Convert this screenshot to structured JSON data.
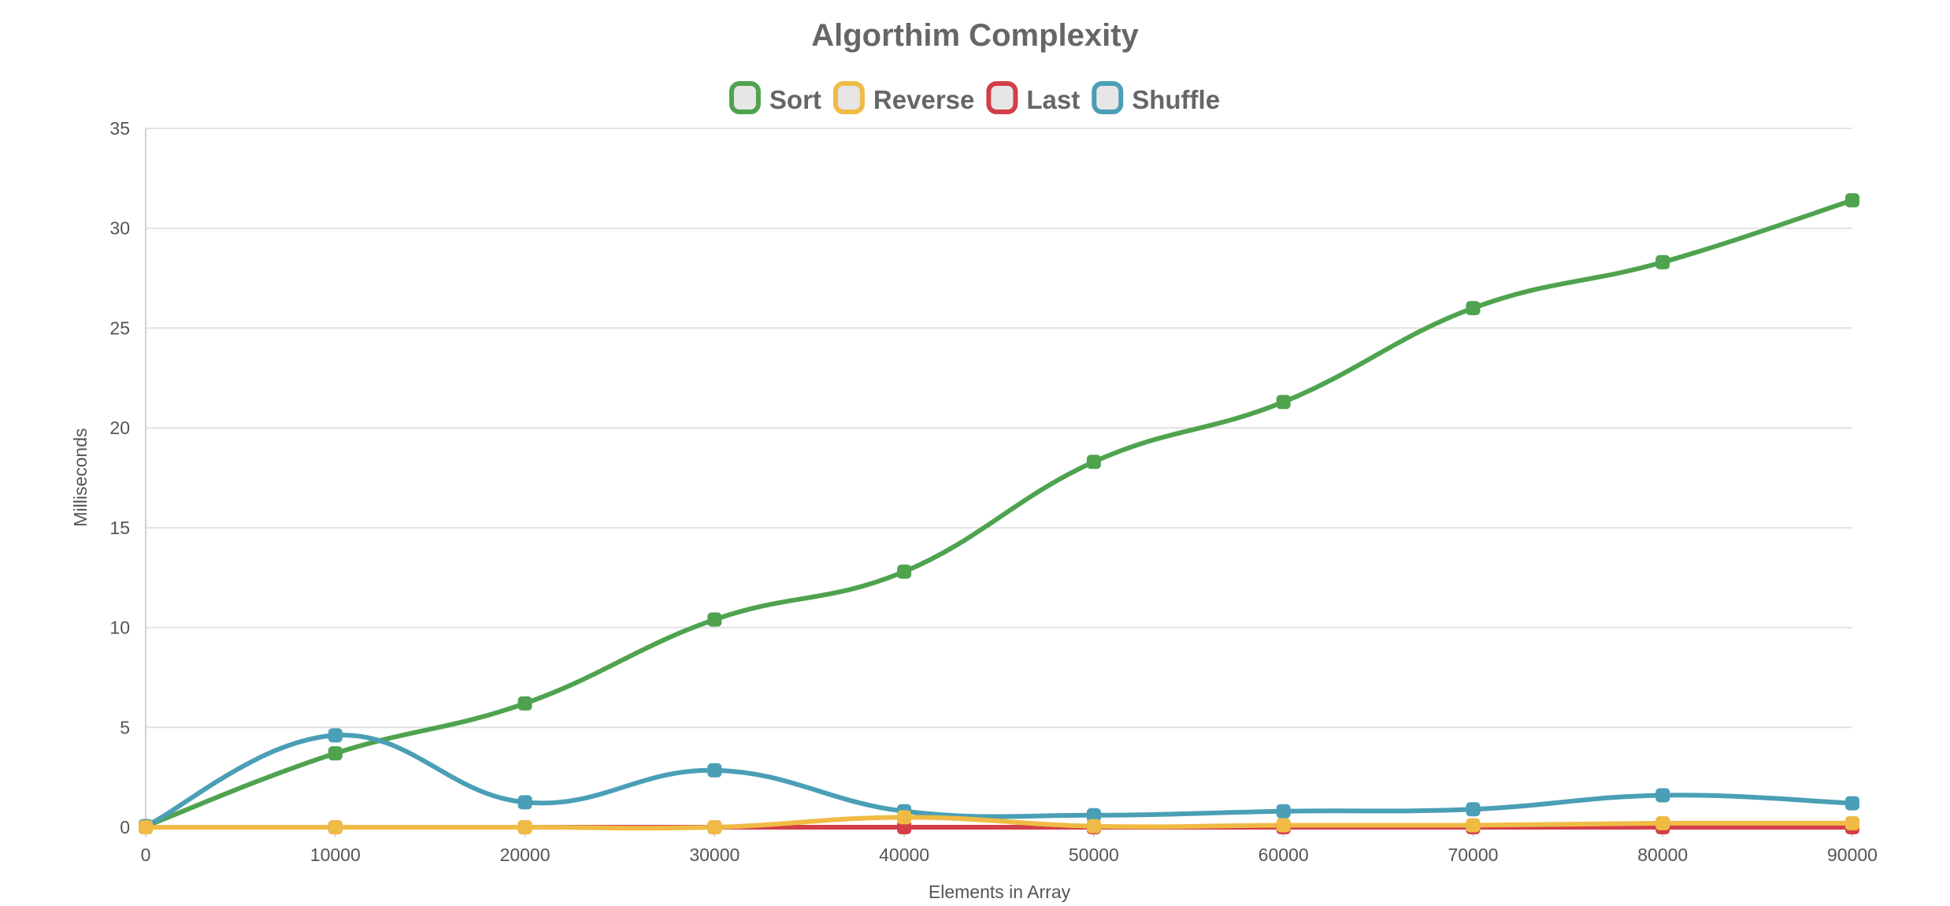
{
  "chart_data": {
    "type": "line",
    "title": "Algorthim Complexity",
    "xlabel": "Elements in Array",
    "ylabel": "Milliseconds",
    "categories": [
      "0",
      "10000",
      "20000",
      "30000",
      "40000",
      "50000",
      "60000",
      "70000",
      "80000",
      "90000"
    ],
    "ylim": [
      0,
      35
    ],
    "yticks": [
      0,
      5,
      10,
      15,
      20,
      25,
      30,
      35
    ],
    "grid": true,
    "legend_position": "top",
    "series": [
      {
        "name": "Sort",
        "color": "#4fa34f",
        "values": [
          0.05,
          3.7,
          6.2,
          10.4,
          12.8,
          18.3,
          21.3,
          26.0,
          28.3,
          31.4
        ]
      },
      {
        "name": "Reverse",
        "color": "#f0bb45",
        "values": [
          0.0,
          0.0,
          0.0,
          0.0,
          0.5,
          0.05,
          0.1,
          0.1,
          0.2,
          0.2
        ]
      },
      {
        "name": "Last",
        "color": "#d33f49",
        "values": [
          0.0,
          0.0,
          0.0,
          0.0,
          0.0,
          0.0,
          0.0,
          0.0,
          0.0,
          0.0
        ]
      },
      {
        "name": "Shuffle",
        "color": "#4a9fb6",
        "values": [
          0.05,
          4.6,
          1.25,
          2.85,
          0.8,
          0.6,
          0.8,
          0.9,
          1.6,
          1.2
        ]
      }
    ]
  }
}
